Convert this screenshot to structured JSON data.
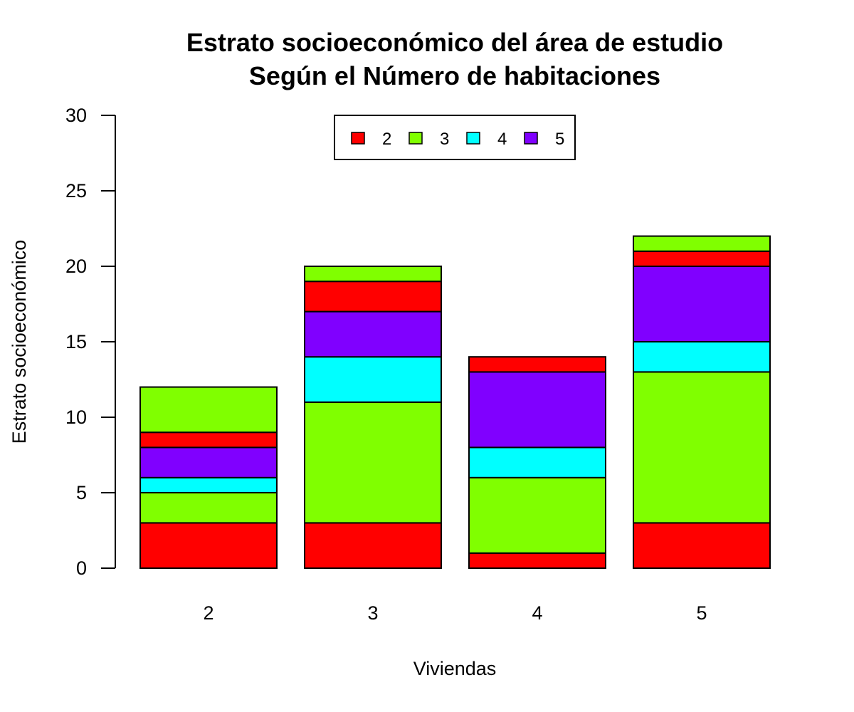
{
  "chart_data": {
    "type": "bar",
    "stacked": true,
    "title_line1": "Estrato socioeconómico del área de estudio",
    "title_line2": "Según el Número de habitaciones",
    "xlabel": "Viviendas",
    "ylabel": "Estrato socioeconómico",
    "ylim": [
      0,
      30
    ],
    "yticks": [
      "0",
      "5",
      "10",
      "15",
      "20",
      "25",
      "30"
    ],
    "grid": false,
    "legend_position": "top-center",
    "categories": [
      "2",
      "3",
      "4",
      "5"
    ],
    "legend": [
      {
        "label": "2",
        "color": "#FF0000"
      },
      {
        "label": "3",
        "color": "#80FF00"
      },
      {
        "label": "4",
        "color": "#00FFFF"
      },
      {
        "label": "5",
        "color": "#8000FF"
      }
    ],
    "stacks": [
      [
        {
          "value": 3,
          "color": "#FF0000"
        },
        {
          "value": 2,
          "color": "#80FF00"
        },
        {
          "value": 1,
          "color": "#00FFFF"
        },
        {
          "value": 2,
          "color": "#8000FF"
        },
        {
          "value": 1,
          "color": "#FF0000"
        },
        {
          "value": 3,
          "color": "#80FF00"
        }
      ],
      [
        {
          "value": 3,
          "color": "#FF0000"
        },
        {
          "value": 8,
          "color": "#80FF00"
        },
        {
          "value": 3,
          "color": "#00FFFF"
        },
        {
          "value": 3,
          "color": "#8000FF"
        },
        {
          "value": 2,
          "color": "#FF0000"
        },
        {
          "value": 1,
          "color": "#80FF00"
        }
      ],
      [
        {
          "value": 1,
          "color": "#FF0000"
        },
        {
          "value": 5,
          "color": "#80FF00"
        },
        {
          "value": 2,
          "color": "#00FFFF"
        },
        {
          "value": 5,
          "color": "#8000FF"
        },
        {
          "value": 1,
          "color": "#FF0000"
        }
      ],
      [
        {
          "value": 3,
          "color": "#FF0000"
        },
        {
          "value": 10,
          "color": "#80FF00"
        },
        {
          "value": 2,
          "color": "#00FFFF"
        },
        {
          "value": 5,
          "color": "#8000FF"
        },
        {
          "value": 1,
          "color": "#FF0000"
        },
        {
          "value": 1,
          "color": "#80FF00"
        }
      ]
    ]
  }
}
